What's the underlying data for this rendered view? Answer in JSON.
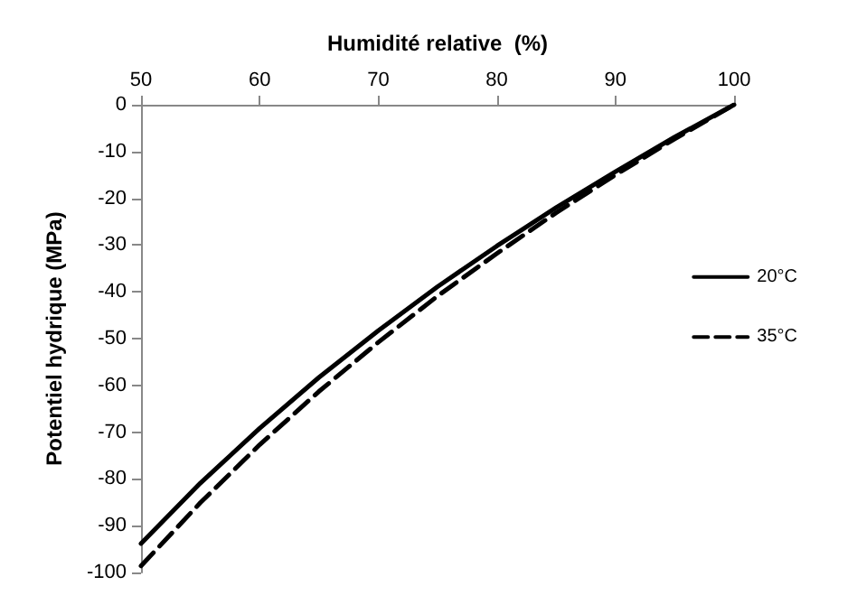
{
  "chart_data": {
    "type": "line",
    "xlabel": "Humidité relative  (%)",
    "ylabel": "Potentiel hydrique (MPa)",
    "x": [
      50,
      55,
      60,
      65,
      70,
      75,
      80,
      85,
      90,
      95,
      100
    ],
    "series": [
      {
        "name": "20°C",
        "color": "#000000",
        "line_style": "solid",
        "values": [
          -93.8,
          -80.9,
          -69.2,
          -58.3,
          -48.3,
          -38.9,
          -30.2,
          -22.0,
          -14.3,
          -6.9,
          0
        ]
      },
      {
        "name": "35°C",
        "color": "#000000",
        "line_style": "dashed",
        "values": [
          -98.6,
          -85.1,
          -72.7,
          -61.3,
          -50.8,
          -40.9,
          -31.8,
          -23.1,
          -15.0,
          -7.3,
          0
        ]
      }
    ],
    "xlim": [
      50,
      100
    ],
    "xticks": [
      50,
      60,
      70,
      80,
      90,
      100
    ],
    "ylim": [
      -100,
      0
    ],
    "yticks": [
      -100,
      -90,
      -80,
      -70,
      -60,
      -50,
      -40,
      -30,
      -20,
      -10,
      0
    ],
    "grid": false,
    "legend": "right",
    "marker": "none"
  }
}
